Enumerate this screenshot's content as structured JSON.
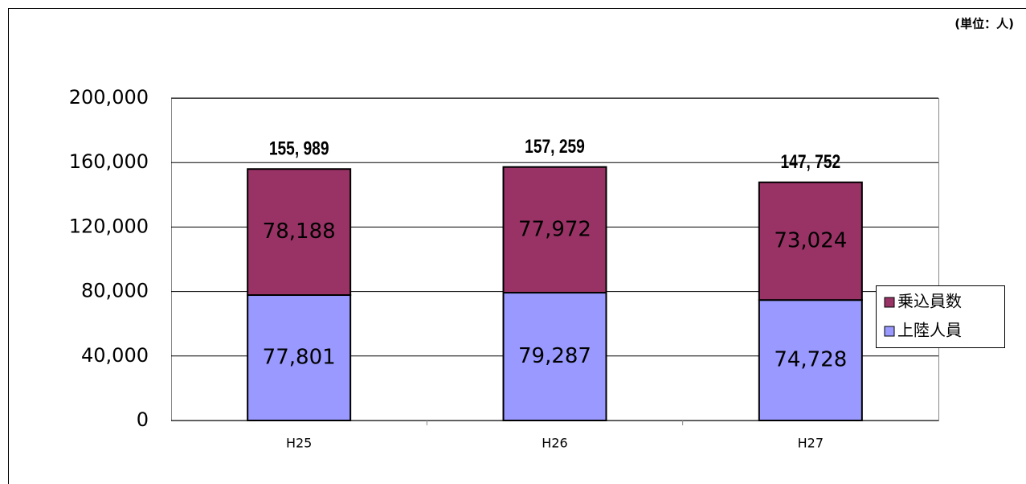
{
  "chart_data": {
    "type": "stacked_bar",
    "unit_note": "(単位：人)",
    "categories": [
      "H25",
      "H26",
      "H27"
    ],
    "series": [
      {
        "name": "上陸人員",
        "color": "#9999ff",
        "values": [
          77801,
          79287,
          74728
        ],
        "value_labels": [
          "77,801",
          "79,287",
          "74,728"
        ]
      },
      {
        "name": "乗込員数",
        "color": "#993366",
        "values": [
          78188,
          77972,
          73024
        ],
        "value_labels": [
          "78,188",
          "77,972",
          "73,024"
        ]
      }
    ],
    "totals": [
      155989,
      157259,
      147752
    ],
    "total_labels": [
      "155, 989",
      "157, 259",
      "147, 752"
    ],
    "ylim": [
      0,
      200000
    ],
    "yticks": [
      0,
      {
        "value": 40000,
        "label": "40,000"
      },
      {
        "value": 80000,
        "label": "80,000"
      },
      {
        "value": 120000,
        "label": "120,000"
      },
      {
        "value": 160000,
        "label": "160,000"
      },
      {
        "value": 200000,
        "label": "200,000"
      }
    ],
    "grid": true,
    "legend": "right"
  }
}
